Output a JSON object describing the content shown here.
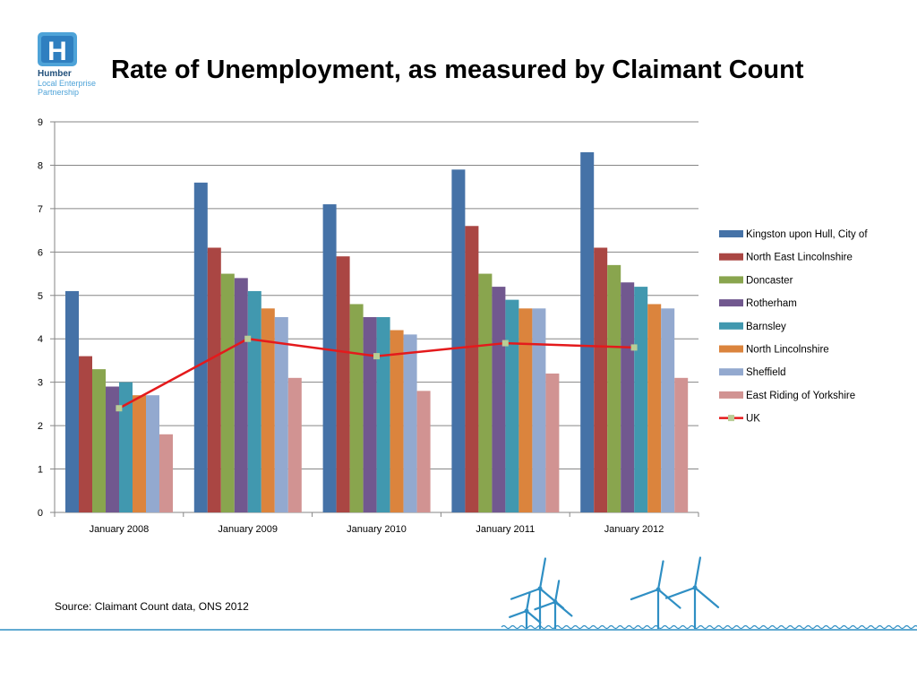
{
  "slide": {
    "title": "Rate of Unemployment, as measured by Claimant Count",
    "source": "Source: Claimant Count data, ONS 2012",
    "logo": {
      "letter": "H",
      "line1": "Humber",
      "line2": "Local Enterprise",
      "line3": "Partnership",
      "color_dark": "#1f4e79",
      "color_light": "#4ea3d8"
    },
    "decoration": "wind-turbines-over-water"
  },
  "chart_data": {
    "type": "bar",
    "categories": [
      "January 2008",
      "January 2009",
      "January 2010",
      "January 2011",
      "January 2012"
    ],
    "ylim": [
      0,
      9
    ],
    "yticks": [
      "0",
      "1",
      "2",
      "3",
      "4",
      "5",
      "6",
      "7",
      "8",
      "9"
    ],
    "grid": true,
    "legend_position": "right",
    "series": [
      {
        "name": "Kingston upon Hull, City of",
        "color": "#4572a7",
        "values": [
          5.1,
          7.6,
          7.1,
          7.9,
          8.3
        ]
      },
      {
        "name": "North East Lincolnshire",
        "color": "#aa4643",
        "values": [
          3.6,
          6.1,
          5.9,
          6.6,
          6.1
        ]
      },
      {
        "name": "Doncaster",
        "color": "#89a54e",
        "values": [
          3.3,
          5.5,
          4.8,
          5.5,
          5.7
        ]
      },
      {
        "name": "Rotherham",
        "color": "#71588f",
        "values": [
          2.9,
          5.4,
          4.5,
          5.2,
          5.3
        ]
      },
      {
        "name": "Barnsley",
        "color": "#4198af",
        "values": [
          3.0,
          5.1,
          4.5,
          4.9,
          5.2
        ]
      },
      {
        "name": "North Lincolnshire",
        "color": "#db843d",
        "values": [
          2.7,
          4.7,
          4.2,
          4.7,
          4.8
        ]
      },
      {
        "name": "Sheffield",
        "color": "#93a9cf",
        "values": [
          2.7,
          4.5,
          4.1,
          4.7,
          4.7
        ]
      },
      {
        "name": "East Riding of Yorkshire",
        "color": "#d19392",
        "values": [
          1.8,
          3.1,
          2.8,
          3.2,
          3.1
        ]
      }
    ],
    "line_series": {
      "name": "UK",
      "color": "#e41a1c",
      "marker_color": "#b9cd96",
      "values": [
        2.4,
        4.0,
        3.6,
        3.9,
        3.8
      ]
    }
  }
}
